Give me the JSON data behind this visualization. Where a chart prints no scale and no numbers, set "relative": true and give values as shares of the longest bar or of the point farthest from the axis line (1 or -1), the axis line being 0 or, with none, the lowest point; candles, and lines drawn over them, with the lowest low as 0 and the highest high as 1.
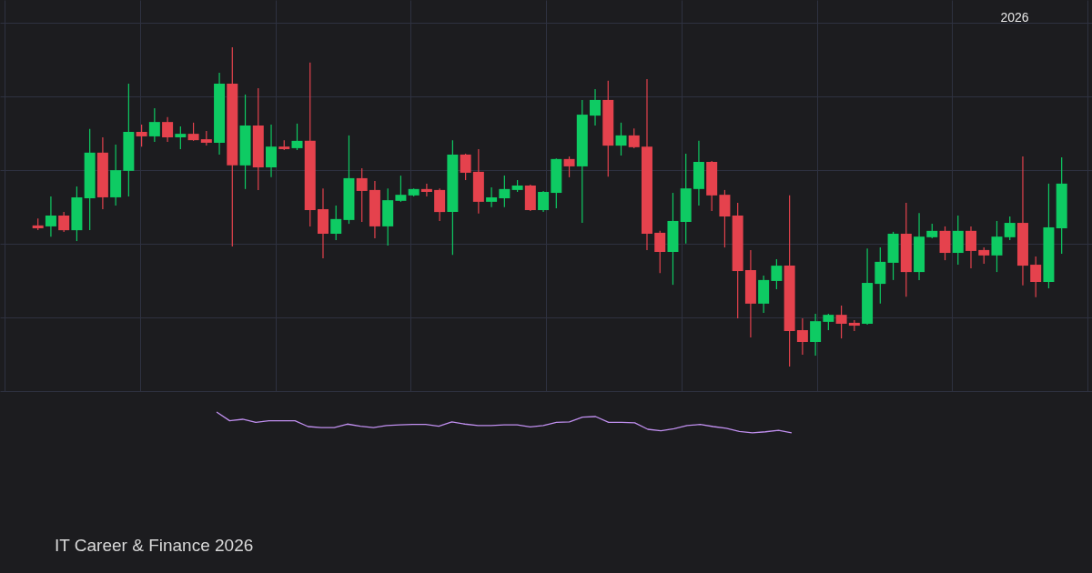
{
  "chart_data": [
    {
      "type": "candlestick",
      "relative": true,
      "grid": true,
      "tick_labels": false,
      "annotations": [
        "2026",
        "IT Career & Finance 2026"
      ],
      "categories": [
        null,
        null,
        null,
        null,
        null,
        null,
        null,
        null,
        null,
        null,
        null,
        null,
        null,
        null,
        null,
        null,
        null,
        null,
        null,
        null,
        null,
        null,
        null,
        null,
        null,
        null,
        null,
        null,
        null,
        null,
        null,
        null,
        null,
        null,
        null,
        null,
        null,
        null,
        null,
        null,
        null,
        null,
        null,
        null,
        null,
        null,
        null,
        null,
        null,
        null,
        null,
        null,
        null,
        null,
        null,
        null,
        null,
        null,
        null,
        null,
        null,
        null,
        null,
        null,
        null,
        null,
        null,
        null,
        null,
        null,
        null,
        null,
        null,
        null,
        null,
        null,
        null,
        null,
        null,
        null
      ],
      "ohlc": [
        [
          0.442,
          0.464,
          0.427,
          0.433
        ],
        [
          0.439,
          0.533,
          0.407,
          0.473
        ],
        [
          0.473,
          0.484,
          0.422,
          0.427
        ],
        [
          0.427,
          0.564,
          0.393,
          0.53
        ],
        [
          0.527,
          0.744,
          0.427,
          0.67
        ],
        [
          0.67,
          0.718,
          0.493,
          0.53
        ],
        [
          0.53,
          0.695,
          0.504,
          0.615
        ],
        [
          0.613,
          0.886,
          0.533,
          0.735
        ],
        [
          0.735,
          0.758,
          0.689,
          0.721
        ],
        [
          0.721,
          0.809,
          0.704,
          0.766
        ],
        [
          0.766,
          0.781,
          0.704,
          0.718
        ],
        [
          0.718,
          0.752,
          0.681,
          0.729
        ],
        [
          0.729,
          0.764,
          0.707,
          0.709
        ],
        [
          0.712,
          0.738,
          0.692,
          0.701
        ],
        [
          0.701,
          0.92,
          0.664,
          0.886
        ],
        [
          0.886,
          1.0,
          0.376,
          0.63
        ],
        [
          0.63,
          0.852,
          0.556,
          0.755
        ],
        [
          0.755,
          0.872,
          0.553,
          0.624
        ],
        [
          0.624,
          0.758,
          0.593,
          0.689
        ],
        [
          0.689,
          0.709,
          0.678,
          0.681
        ],
        [
          0.684,
          0.761,
          0.678,
          0.707
        ],
        [
          0.707,
          0.952,
          0.439,
          0.49
        ],
        [
          0.493,
          0.558,
          0.339,
          0.416
        ],
        [
          0.416,
          0.504,
          0.396,
          0.462
        ],
        [
          0.459,
          0.724,
          0.447,
          0.59
        ],
        [
          0.59,
          0.621,
          0.453,
          0.55
        ],
        [
          0.553,
          0.581,
          0.402,
          0.439
        ],
        [
          0.439,
          0.558,
          0.379,
          0.521
        ],
        [
          0.519,
          0.598,
          0.516,
          0.538
        ],
        [
          0.536,
          0.558,
          0.533,
          0.556
        ],
        [
          0.556,
          0.573,
          0.533,
          0.547
        ],
        [
          0.553,
          0.558,
          0.456,
          0.484
        ],
        [
          0.484,
          0.709,
          0.35,
          0.664
        ],
        [
          0.664,
          0.667,
          0.584,
          0.607
        ],
        [
          0.61,
          0.681,
          0.479,
          0.516
        ],
        [
          0.516,
          0.561,
          0.499,
          0.53
        ],
        [
          0.527,
          0.598,
          0.499,
          0.556
        ],
        [
          0.553,
          0.584,
          0.547,
          0.567
        ],
        [
          0.567,
          0.57,
          0.487,
          0.49
        ],
        [
          0.49,
          0.55,
          0.484,
          0.547
        ],
        [
          0.544,
          0.652,
          0.496,
          0.65
        ],
        [
          0.65,
          0.658,
          0.593,
          0.627
        ],
        [
          0.627,
          0.835,
          0.45,
          0.789
        ],
        [
          0.786,
          0.869,
          0.755,
          0.835
        ],
        [
          0.835,
          0.895,
          0.595,
          0.692
        ],
        [
          0.692,
          0.764,
          0.661,
          0.724
        ],
        [
          0.724,
          0.746,
          0.684,
          0.687
        ],
        [
          0.689,
          0.9,
          0.365,
          0.416
        ],
        [
          0.419,
          0.425,
          0.293,
          0.359
        ],
        [
          0.359,
          0.544,
          0.256,
          0.456
        ],
        [
          0.453,
          0.667,
          0.385,
          0.558
        ],
        [
          0.556,
          0.707,
          0.504,
          0.641
        ],
        [
          0.641,
          0.644,
          0.487,
          0.536
        ],
        [
          0.538,
          0.553,
          0.373,
          0.47
        ],
        [
          0.473,
          0.513,
          0.151,
          0.299
        ],
        [
          0.302,
          0.365,
          0.091,
          0.197
        ],
        [
          0.197,
          0.285,
          0.168,
          0.271
        ],
        [
          0.268,
          0.336,
          0.242,
          0.316
        ],
        [
          0.316,
          0.536,
          0.0,
          0.111
        ],
        [
          0.114,
          0.151,
          0.037,
          0.077
        ],
        [
          0.077,
          0.165,
          0.034,
          0.142
        ],
        [
          0.14,
          0.165,
          0.114,
          0.162
        ],
        [
          0.162,
          0.191,
          0.088,
          0.134
        ],
        [
          0.137,
          0.145,
          0.111,
          0.128
        ],
        [
          0.134,
          0.37,
          0.131,
          0.262
        ],
        [
          0.259,
          0.373,
          0.197,
          0.328
        ],
        [
          0.325,
          0.422,
          0.271,
          0.416
        ],
        [
          0.416,
          0.513,
          0.219,
          0.296
        ],
        [
          0.296,
          0.481,
          0.271,
          0.407
        ],
        [
          0.405,
          0.447,
          0.402,
          0.425
        ],
        [
          0.425,
          0.439,
          0.333,
          0.356
        ],
        [
          0.356,
          0.473,
          0.319,
          0.425
        ],
        [
          0.425,
          0.439,
          0.308,
          0.362
        ],
        [
          0.365,
          0.373,
          0.322,
          0.348
        ],
        [
          0.348,
          0.456,
          0.296,
          0.407
        ],
        [
          0.405,
          0.47,
          0.396,
          0.45
        ],
        [
          0.45,
          0.658,
          0.254,
          0.316
        ],
        [
          0.319,
          0.345,
          0.217,
          0.265
        ],
        [
          0.265,
          0.573,
          0.245,
          0.436
        ],
        [
          0.433,
          0.655,
          0.353,
          0.573
        ]
      ],
      "colors": [
        "#e5424d",
        "#0ecb63",
        "#e5424d",
        "#0ecb63",
        "#0ecb63",
        "#e5424d",
        "#0ecb63",
        "#0ecb63",
        "#e5424d",
        "#0ecb63",
        "#e5424d",
        "#0ecb63",
        "#e5424d",
        "#e5424d",
        "#0ecb63",
        "#e5424d",
        "#0ecb63",
        "#e5424d",
        "#0ecb63",
        "#e5424d",
        "#0ecb63",
        "#e5424d",
        "#e5424d",
        "#0ecb63",
        "#0ecb63",
        "#e5424d",
        "#e5424d",
        "#0ecb63",
        "#0ecb63",
        "#0ecb63",
        "#e5424d",
        "#e5424d",
        "#0ecb63",
        "#e5424d",
        "#e5424d",
        "#0ecb63",
        "#0ecb63",
        "#0ecb63",
        "#e5424d",
        "#0ecb63",
        "#0ecb63",
        "#e5424d",
        "#0ecb63",
        "#0ecb63",
        "#e5424d",
        "#0ecb63",
        "#e5424d",
        "#e5424d",
        "#e5424d",
        "#0ecb63",
        "#0ecb63",
        "#0ecb63",
        "#e5424d",
        "#e5424d",
        "#e5424d",
        "#e5424d",
        "#0ecb63",
        "#0ecb63",
        "#e5424d",
        "#e5424d",
        "#0ecb63",
        "#0ecb63",
        "#e5424d",
        "#e5424d",
        "#0ecb63",
        "#0ecb63",
        "#0ecb63",
        "#e5424d",
        "#0ecb63",
        "#0ecb63",
        "#e5424d",
        "#0ecb63",
        "#e5424d",
        "#e5424d",
        "#0ecb63",
        "#0ecb63",
        "#e5424d",
        "#e5424d",
        "#0ecb63",
        "#0ecb63"
      ]
    },
    {
      "type": "line",
      "relative": true,
      "tick_labels": false,
      "categories": [
        null,
        null,
        null,
        null,
        null,
        null,
        null,
        null,
        null,
        null,
        null,
        null,
        null,
        null,
        null,
        null,
        null,
        null,
        null,
        null,
        null,
        null,
        null,
        null,
        null,
        null,
        null,
        null,
        null,
        null,
        null,
        null,
        null,
        null,
        null,
        null,
        null,
        null,
        null,
        null,
        null,
        null,
        null,
        null,
        null,
        null,
        null,
        null,
        null,
        null,
        null,
        null,
        null,
        null,
        null,
        null,
        null,
        null,
        null,
        null,
        null,
        null,
        null,
        null,
        null,
        null,
        null,
        null,
        null,
        null,
        null,
        null,
        null,
        null,
        null,
        null,
        null,
        null,
        null,
        null
      ],
      "series": [
        {
          "color": "#c08fef",
          "values": [
            null,
            null,
            null,
            null,
            null,
            null,
            null,
            null,
            null,
            null,
            null,
            null,
            null,
            null,
            1.0,
            0.58,
            0.65,
            0.5,
            0.58,
            0.58,
            0.58,
            0.3,
            0.25,
            0.25,
            0.42,
            0.32,
            0.25,
            0.35,
            0.38,
            0.4,
            0.4,
            0.32,
            0.52,
            0.42,
            0.35,
            0.35,
            0.38,
            0.38,
            0.28,
            0.35,
            0.5,
            0.52,
            0.75,
            0.78,
            0.5,
            0.5,
            0.48,
            0.17,
            0.1,
            0.2,
            0.35,
            0.4,
            0.3,
            0.22,
            0.07,
            0.0,
            0.05,
            0.12,
            0.0,
            null,
            null,
            null,
            null,
            null,
            null,
            null,
            null,
            null,
            null,
            null,
            null,
            null,
            null,
            null,
            null,
            null,
            null,
            null,
            null,
            null
          ]
        }
      ]
    }
  ]
}
